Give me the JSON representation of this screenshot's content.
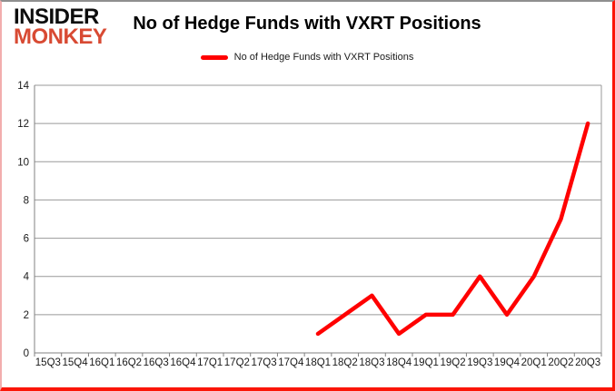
{
  "logo": {
    "line1": "INSIDER",
    "line2": "MONKEY"
  },
  "title": "No of Hedge Funds with VXRT Positions",
  "legend": {
    "label": "No of Hedge Funds with VXRT Positions"
  },
  "colors": {
    "series": "#ff0000",
    "logo_accent": "#d84a33",
    "logo_main": "#0d0d0d",
    "grid": "#999999",
    "axis": "#808080",
    "tick_text": "#1a1a1a",
    "frame_red": "#fb1507"
  },
  "chart_data": {
    "type": "line",
    "title": "No of Hedge Funds with VXRT Positions",
    "categories": [
      "15Q3",
      "15Q4",
      "16Q1",
      "16Q2",
      "16Q3",
      "16Q4",
      "17Q1",
      "17Q2",
      "17Q3",
      "17Q4",
      "18Q1",
      "18Q2",
      "18Q3",
      "18Q4",
      "19Q1",
      "19Q2",
      "19Q3",
      "19Q4",
      "20Q1",
      "20Q2",
      "20Q3"
    ],
    "series": [
      {
        "name": "No of Hedge Funds with VXRT Positions",
        "values": [
          null,
          null,
          null,
          null,
          null,
          null,
          null,
          null,
          null,
          null,
          1,
          2,
          3,
          1,
          2,
          2,
          4,
          2,
          4,
          7,
          12
        ]
      }
    ],
    "xlabel": "",
    "ylabel": "",
    "ylim": [
      0,
      14
    ],
    "yticks": [
      0,
      2,
      4,
      6,
      8,
      10,
      12,
      14
    ],
    "grid": true,
    "legend_position": "top"
  }
}
